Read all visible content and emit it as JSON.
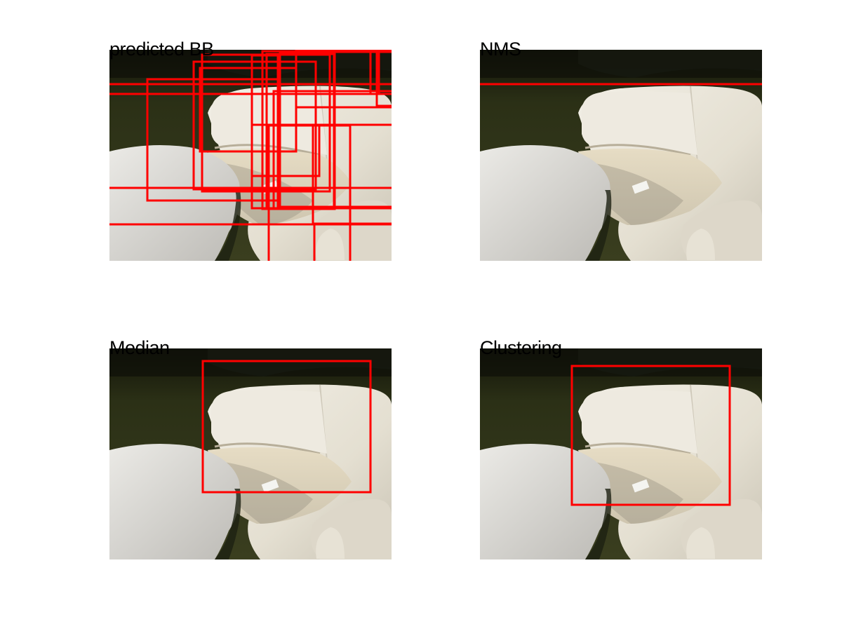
{
  "figure": {
    "panels": [
      {
        "title": "predicted BB"
      },
      {
        "title": "NMS"
      },
      {
        "title": "Median"
      },
      {
        "title": "Clustering"
      }
    ],
    "colors": {
      "box": "#ff0000",
      "grass": "#2f3418",
      "grass_dark": "#1c2010",
      "chair": "#e9e4d7",
      "cushion": "#d8d2c2",
      "ottoman": "#dedcd7"
    }
  }
}
